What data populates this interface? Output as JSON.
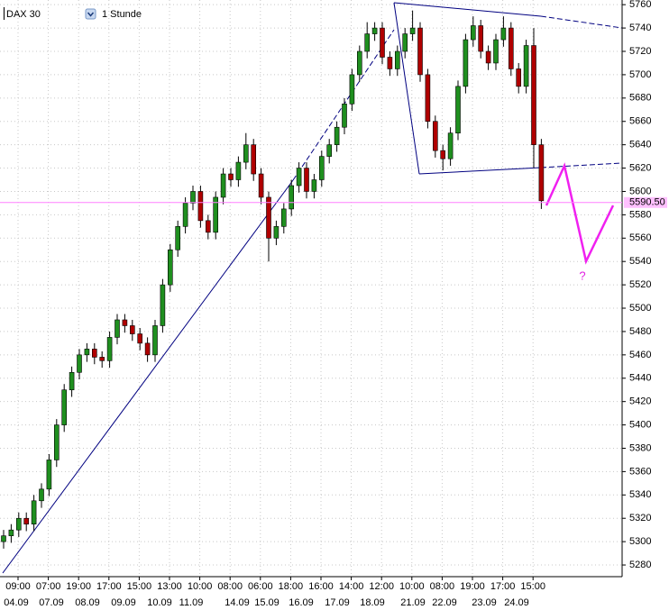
{
  "chart_data": {
    "type": "candlestick",
    "title": "DAX 30",
    "timeframe": "1 Stunde",
    "up_color": "#1f8f1f",
    "down_color": "#b00000",
    "ylim": [
      5270,
      5764
    ],
    "yticks": [
      5280,
      5300,
      5320,
      5340,
      5360,
      5380,
      5400,
      5420,
      5440,
      5460,
      5480,
      5500,
      5520,
      5540,
      5560,
      5580,
      5600,
      5620,
      5640,
      5660,
      5680,
      5700,
      5720,
      5740,
      5760
    ],
    "grid": true,
    "time_labels": [
      "09:00",
      "07:00",
      "19:00",
      "17:00",
      "15:00",
      "13:00",
      "10:00",
      "08:00",
      "06:00",
      "18:00",
      "16:00",
      "14:00",
      "12:00",
      "10:00",
      "08:00",
      "19:00",
      "17:00",
      "15:00"
    ],
    "date_labels": [
      "04.09",
      "07.09",
      "08.09",
      "09.09",
      "10.09",
      "11.09",
      "14.09",
      "15.09",
      "16.09",
      "17.09",
      "18.09",
      "21.09",
      "22.09",
      "23.09",
      "24.09"
    ],
    "current_price": {
      "value": 5590.5,
      "label": "5590.50"
    },
    "annotation": "?",
    "open": [
      5300,
      5305,
      5310,
      5320,
      5315,
      5335,
      5345,
      5370,
      5400,
      5430,
      5445,
      5460,
      5465,
      5458,
      5455,
      5475,
      5490,
      5485,
      5478,
      5470,
      5460,
      5485,
      5520,
      5550,
      5570,
      5590,
      5600,
      5575,
      5565,
      5595,
      5615,
      5610,
      5625,
      5640,
      5615,
      5595,
      5560,
      5570,
      5585,
      5605,
      5620,
      5600,
      5610,
      5630,
      5640,
      5655,
      5675,
      5700,
      5720,
      5735,
      5740,
      5715,
      5705,
      5720,
      5735,
      5740,
      5700,
      5660,
      5635,
      5628,
      5650,
      5690,
      5730,
      5742,
      5720,
      5710,
      5730,
      5740,
      5705,
      5690,
      5725,
      5640
    ],
    "high": [
      5310,
      5315,
      5325,
      5325,
      5340,
      5350,
      5375,
      5405,
      5435,
      5450,
      5465,
      5470,
      5470,
      5463,
      5480,
      5495,
      5495,
      5490,
      5483,
      5475,
      5490,
      5525,
      5555,
      5575,
      5595,
      5605,
      5605,
      5580,
      5600,
      5620,
      5620,
      5630,
      5650,
      5645,
      5620,
      5600,
      5575,
      5590,
      5610,
      5625,
      5625,
      5615,
      5635,
      5645,
      5660,
      5680,
      5705,
      5725,
      5745,
      5745,
      5745,
      5720,
      5725,
      5740,
      5755,
      5745,
      5705,
      5665,
      5640,
      5655,
      5695,
      5735,
      5750,
      5747,
      5725,
      5735,
      5750,
      5745,
      5710,
      5730,
      5740,
      5645
    ],
    "low": [
      5294,
      5299,
      5304,
      5309,
      5309,
      5329,
      5339,
      5364,
      5394,
      5424,
      5439,
      5454,
      5452,
      5449,
      5449,
      5469,
      5479,
      5472,
      5464,
      5454,
      5454,
      5479,
      5514,
      5544,
      5564,
      5584,
      5569,
      5559,
      5559,
      5589,
      5604,
      5604,
      5619,
      5609,
      5589,
      5540,
      5554,
      5564,
      5579,
      5599,
      5594,
      5594,
      5604,
      5624,
      5634,
      5649,
      5669,
      5694,
      5714,
      5729,
      5709,
      5699,
      5699,
      5714,
      5729,
      5694,
      5654,
      5629,
      5618,
      5622,
      5644,
      5684,
      5724,
      5714,
      5704,
      5704,
      5724,
      5699,
      5684,
      5684,
      5620,
      5585
    ],
    "close": [
      5305,
      5310,
      5320,
      5315,
      5335,
      5345,
      5370,
      5400,
      5430,
      5445,
      5460,
      5465,
      5458,
      5455,
      5475,
      5490,
      5485,
      5478,
      5470,
      5460,
      5485,
      5520,
      5550,
      5570,
      5590,
      5600,
      5575,
      5565,
      5595,
      5615,
      5610,
      5625,
      5640,
      5615,
      5595,
      5560,
      5570,
      5585,
      5605,
      5620,
      5600,
      5610,
      5630,
      5640,
      5655,
      5675,
      5700,
      5720,
      5735,
      5740,
      5715,
      5705,
      5720,
      5735,
      5740,
      5700,
      5660,
      5635,
      5628,
      5650,
      5690,
      5730,
      5742,
      5720,
      5710,
      5730,
      5740,
      5705,
      5690,
      5725,
      5640,
      5592
    ]
  }
}
